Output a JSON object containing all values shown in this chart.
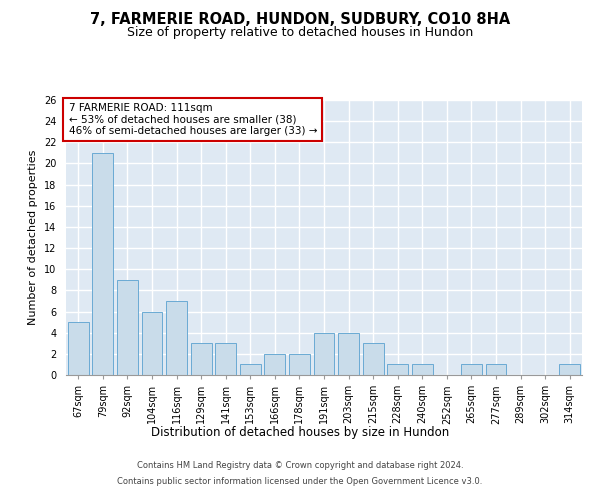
{
  "title1": "7, FARMERIE ROAD, HUNDON, SUDBURY, CO10 8HA",
  "title2": "Size of property relative to detached houses in Hundon",
  "xlabel": "Distribution of detached houses by size in Hundon",
  "ylabel": "Number of detached properties",
  "categories": [
    "67sqm",
    "79sqm",
    "92sqm",
    "104sqm",
    "116sqm",
    "129sqm",
    "141sqm",
    "153sqm",
    "166sqm",
    "178sqm",
    "191sqm",
    "203sqm",
    "215sqm",
    "228sqm",
    "240sqm",
    "252sqm",
    "265sqm",
    "277sqm",
    "289sqm",
    "302sqm",
    "314sqm"
  ],
  "values": [
    5,
    21,
    9,
    6,
    7,
    3,
    3,
    1,
    2,
    2,
    4,
    4,
    3,
    1,
    1,
    0,
    1,
    1,
    0,
    0,
    1
  ],
  "bar_color": "#c9dcea",
  "bar_edge_color": "#6aaad4",
  "annotation_text": "7 FARMERIE ROAD: 111sqm\n← 53% of detached houses are smaller (38)\n46% of semi-detached houses are larger (33) →",
  "annotation_box_color": "#ffffff",
  "annotation_box_edge_color": "#cc0000",
  "ylim": [
    0,
    26
  ],
  "yticks": [
    0,
    2,
    4,
    6,
    8,
    10,
    12,
    14,
    16,
    18,
    20,
    22,
    24,
    26
  ],
  "background_color": "#dfe9f3",
  "grid_color": "#ffffff",
  "footer_line1": "Contains HM Land Registry data © Crown copyright and database right 2024.",
  "footer_line2": "Contains public sector information licensed under the Open Government Licence v3.0.",
  "title1_fontsize": 10.5,
  "title2_fontsize": 9,
  "xlabel_fontsize": 8.5,
  "ylabel_fontsize": 8,
  "tick_fontsize": 7,
  "annotation_fontsize": 7.5,
  "footer_fontsize": 6
}
